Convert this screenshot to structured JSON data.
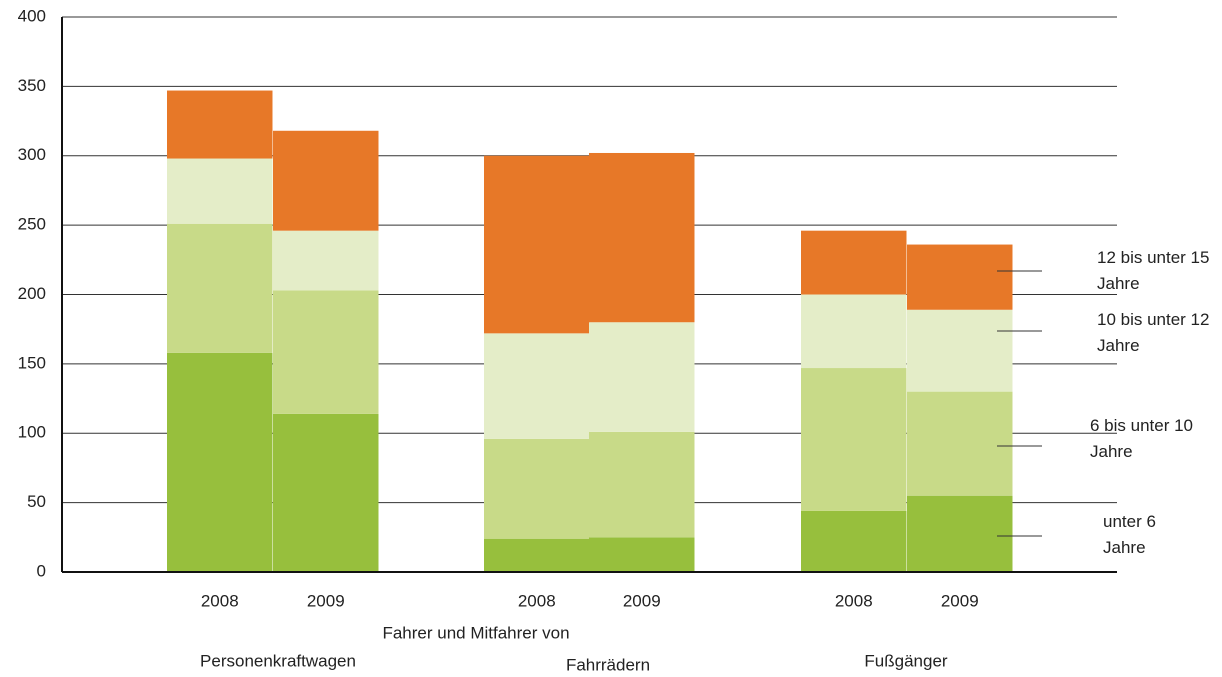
{
  "chart_data": {
    "type": "stacked_bar",
    "categories": [
      "2008",
      "2009",
      "2008",
      "2009",
      "2008",
      "2009"
    ],
    "groups": [
      "Personenkraftwagen",
      "Fahrrädern",
      "Fußgänger"
    ],
    "group_header": "Fahrer und Mitfahrer von",
    "series": [
      {
        "name": "unter 6 Jahre",
        "color": "#97bf3d",
        "values": [
          158,
          114,
          24,
          25,
          44,
          55
        ]
      },
      {
        "name": "6 bis unter 10 Jahre",
        "color": "#c8da88",
        "values": [
          93,
          89,
          72,
          76,
          103,
          75
        ]
      },
      {
        "name": "10 bis unter 12 Jahre",
        "color": "#e4edc8",
        "values": [
          47,
          43,
          76,
          79,
          53,
          59
        ]
      },
      {
        "name": "12 bis unter 15 Jahre",
        "color": "#e77828",
        "values": [
          49,
          72,
          128,
          122,
          46,
          47
        ]
      }
    ],
    "ylim": [
      0,
      400
    ],
    "yticks": [
      0,
      50,
      100,
      150,
      200,
      250,
      300,
      350,
      400
    ],
    "grid": true
  }
}
